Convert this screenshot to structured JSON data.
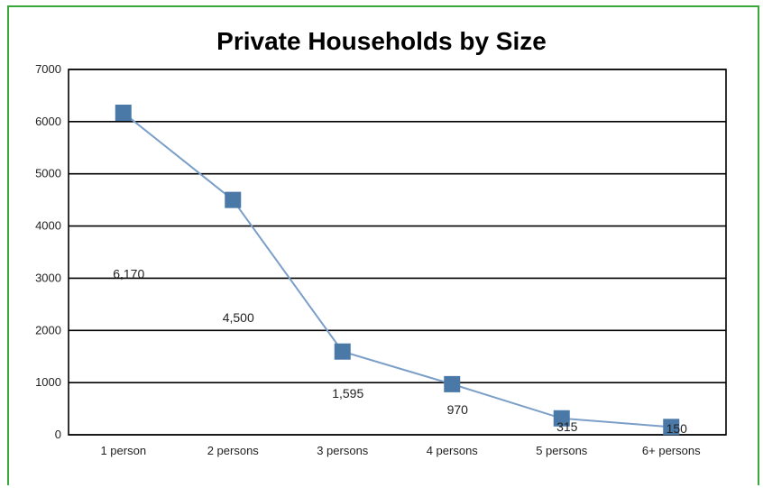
{
  "chart_data": {
    "type": "line",
    "title": "Private Households by Size",
    "categories": [
      "1 person",
      "2 persons",
      "3 persons",
      "4 persons",
      "5 persons",
      "6+ persons"
    ],
    "values": [
      6170,
      4500,
      1595,
      970,
      315,
      150
    ],
    "data_labels": [
      "6,170",
      "4,500",
      "1,595",
      "970",
      "315",
      "150"
    ],
    "ylim": [
      0,
      7000
    ],
    "yticks": [
      "0",
      "1000",
      "2000",
      "3000",
      "4000",
      "5000",
      "6000",
      "7000"
    ],
    "grid": true,
    "legend": "none",
    "series_color": "#4a79a8",
    "line_color": "#7b9fc8"
  }
}
